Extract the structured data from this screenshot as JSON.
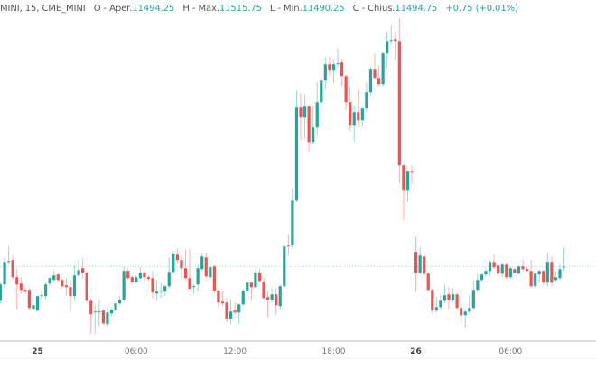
{
  "legend": {
    "symbol": "MINI, 15, CME_MINI",
    "open_label": "O - Aper.",
    "open": "11494.25",
    "high_label": "H - Max.",
    "high": "11515.75",
    "low_label": "L - Min.",
    "low": "11490.25",
    "close_label": "C - Chius.",
    "close": "11494.75",
    "change": "+0.75 (+0.01%)"
  },
  "colors": {
    "up": "#26a69a",
    "down": "#ef5350",
    "text": "#555555"
  },
  "chart_data": {
    "type": "candlestick",
    "title": "MINI, 15, CME_MINI",
    "interval": "15",
    "x_tick_labels": [
      "25",
      "06:00",
      "12:00",
      "18:00",
      "26",
      "06:00"
    ],
    "x_tick_candle_index": [
      9,
      33,
      57,
      81,
      101,
      124
    ],
    "bold_ticks": [
      "25",
      "26"
    ],
    "last_price": 11494.75,
    "ohlc": [
      [
        11457,
        11477,
        11454,
        11475
      ],
      [
        11475,
        11505,
        11470,
        11500
      ],
      [
        11500,
        11517,
        11497,
        11501
      ],
      [
        11502,
        11507,
        11480,
        11483
      ],
      [
        11483,
        11492,
        11447,
        11475
      ],
      [
        11476,
        11483,
        11465,
        11469
      ],
      [
        11469,
        11471,
        11465,
        11467
      ],
      [
        11469,
        11471,
        11447,
        11449
      ],
      [
        11448,
        11454,
        11446,
        11452
      ],
      [
        11446,
        11463,
        11445,
        11462
      ],
      [
        11462,
        11468,
        11458,
        11463
      ],
      [
        11462,
        11478,
        11458,
        11475
      ],
      [
        11476,
        11484,
        11474,
        11482
      ],
      [
        11480,
        11491,
        11477,
        11485
      ],
      [
        11486,
        11488,
        11478,
        11480
      ],
      [
        11480,
        11482,
        11471,
        11473
      ],
      [
        11474,
        11482,
        11463,
        11472
      ],
      [
        11472,
        11480,
        11444,
        11462
      ],
      [
        11462,
        11496,
        11457,
        11485
      ],
      [
        11485,
        11503,
        11483,
        11491
      ],
      [
        11493,
        11504,
        11482,
        11488
      ],
      [
        11488,
        11490,
        11455,
        11457
      ],
      [
        11457,
        11460,
        11420,
        11442
      ],
      [
        11444,
        11452,
        11420,
        11445
      ],
      [
        11444,
        11458,
        11428,
        11445
      ],
      [
        11446,
        11448,
        11430,
        11432
      ],
      [
        11431,
        11450,
        11428,
        11444
      ],
      [
        11443,
        11449,
        11440,
        11447
      ],
      [
        11447,
        11456,
        11445,
        11454
      ],
      [
        11454,
        11462,
        11452,
        11458
      ],
      [
        11458,
        11495,
        11456,
        11490
      ],
      [
        11490,
        11492,
        11480,
        11482
      ],
      [
        11483,
        11485,
        11475,
        11478
      ],
      [
        11478,
        11485,
        11476,
        11483
      ],
      [
        11482,
        11494,
        11480,
        11488
      ],
      [
        11488,
        11490,
        11477,
        11483
      ],
      [
        11483,
        11485,
        11479,
        11481
      ],
      [
        11482,
        11490,
        11460,
        11466
      ],
      [
        11465,
        11480,
        11457,
        11467
      ],
      [
        11467,
        11477,
        11460,
        11468
      ],
      [
        11467,
        11475,
        11462,
        11473
      ],
      [
        11473,
        11505,
        11470,
        11489
      ],
      [
        11489,
        11512,
        11487,
        11509
      ],
      [
        11508,
        11515,
        11498,
        11502
      ],
      [
        11502,
        11507,
        11482,
        11493
      ],
      [
        11493,
        11514,
        11480,
        11482
      ],
      [
        11482,
        11514,
        11470,
        11470
      ],
      [
        11473,
        11475,
        11465,
        11473
      ],
      [
        11475,
        11497,
        11467,
        11493
      ],
      [
        11492,
        11510,
        11490,
        11506
      ],
      [
        11505,
        11510,
        11482,
        11484
      ],
      [
        11483,
        11496,
        11481,
        11494
      ],
      [
        11495,
        11497,
        11466,
        11468
      ],
      [
        11468,
        11470,
        11450,
        11455
      ],
      [
        11456,
        11468,
        11452,
        11454
      ],
      [
        11455,
        11460,
        11433,
        11437
      ],
      [
        11437,
        11459,
        11431,
        11445
      ],
      [
        11446,
        11455,
        11442,
        11444
      ],
      [
        11444,
        11453,
        11431,
        11453
      ],
      [
        11453,
        11470,
        11451,
        11468
      ],
      [
        11468,
        11478,
        11466,
        11477
      ],
      [
        11477,
        11478,
        11457,
        11472
      ],
      [
        11472,
        11491,
        11470,
        11488
      ],
      [
        11488,
        11492,
        11477,
        11479
      ],
      [
        11478,
        11482,
        11458,
        11460
      ],
      [
        11461,
        11467,
        11439,
        11458
      ],
      [
        11458,
        11471,
        11455,
        11464
      ],
      [
        11464,
        11471,
        11441,
        11452
      ],
      [
        11451,
        11475,
        11447,
        11473
      ],
      [
        11473,
        11519,
        11471,
        11517
      ],
      [
        11518,
        11531,
        11507,
        11517
      ],
      [
        11518,
        11582,
        11516,
        11568
      ],
      [
        11568,
        11690,
        11566,
        11671
      ],
      [
        11671,
        11687,
        11635,
        11660
      ],
      [
        11660,
        11685,
        11637,
        11672
      ],
      [
        11672,
        11674,
        11623,
        11633
      ],
      [
        11633,
        11673,
        11630,
        11649
      ],
      [
        11649,
        11699,
        11640,
        11677
      ],
      [
        11677,
        11707,
        11675,
        11701
      ],
      [
        11701,
        11727,
        11691,
        11719
      ],
      [
        11719,
        11727,
        11707,
        11712
      ],
      [
        11712,
        11723,
        11698,
        11719
      ],
      [
        11719,
        11737,
        11715,
        11720
      ],
      [
        11721,
        11725,
        11695,
        11706
      ],
      [
        11706,
        11708,
        11668,
        11677
      ],
      [
        11677,
        11695,
        11645,
        11651
      ],
      [
        11651,
        11673,
        11633,
        11666
      ],
      [
        11666,
        11691,
        11649,
        11657
      ],
      [
        11657,
        11672,
        11649,
        11670
      ],
      [
        11670,
        11699,
        11666,
        11688
      ],
      [
        11688,
        11716,
        11684,
        11713
      ],
      [
        11713,
        11731,
        11702,
        11704
      ],
      [
        11704,
        11717,
        11695,
        11697
      ],
      [
        11697,
        11733,
        11694,
        11731
      ],
      [
        11731,
        11755,
        11715,
        11745
      ],
      [
        11745,
        11762,
        11741,
        11746
      ],
      [
        11747,
        11755,
        11724,
        11745
      ],
      [
        11745,
        11770,
        11587,
        11607
      ],
      [
        11607,
        11609,
        11546,
        11579
      ],
      [
        11579,
        11602,
        11567,
        11600
      ],
      [
        11600,
        11607,
        11587,
        11599
      ],
      [
        11511,
        11528,
        11467,
        11488
      ],
      [
        11488,
        11516,
        11486,
        11507
      ],
      [
        11506,
        11511,
        11485,
        11487
      ],
      [
        11487,
        11489,
        11467,
        11469
      ],
      [
        11469,
        11471,
        11443,
        11446
      ],
      [
        11446,
        11461,
        11444,
        11450
      ],
      [
        11450,
        11463,
        11446,
        11457
      ],
      [
        11457,
        11475,
        11455,
        11463
      ],
      [
        11464,
        11472,
        11448,
        11458
      ],
      [
        11458,
        11471,
        11456,
        11464
      ],
      [
        11464,
        11466,
        11447,
        11449
      ],
      [
        11449,
        11453,
        11433,
        11441
      ],
      [
        11441,
        11447,
        11427,
        11445
      ],
      [
        11445,
        11463,
        11443,
        11449
      ],
      [
        11449,
        11479,
        11447,
        11469
      ],
      [
        11469,
        11487,
        11467,
        11480
      ],
      [
        11480,
        11488,
        11478,
        11486
      ],
      [
        11486,
        11493,
        11484,
        11490
      ],
      [
        11490,
        11502,
        11484,
        11500
      ],
      [
        11500,
        11508,
        11492,
        11494
      ],
      [
        11496,
        11497,
        11484,
        11487
      ],
      [
        11487,
        11498,
        11483,
        11497
      ],
      [
        11497,
        11499,
        11481,
        11483
      ],
      [
        11483,
        11495,
        11481,
        11493
      ],
      [
        11492,
        11493,
        11487,
        11488
      ],
      [
        11487,
        11496,
        11486,
        11495
      ],
      [
        11495,
        11503,
        11490,
        11492
      ],
      [
        11492,
        11495,
        11490,
        11490
      ],
      [
        11490,
        11502,
        11471,
        11473
      ],
      [
        11473,
        11489,
        11471,
        11487
      ],
      [
        11486,
        11492,
        11477,
        11490
      ],
      [
        11490,
        11492,
        11475,
        11477
      ],
      [
        11477,
        11510,
        11473,
        11500
      ],
      [
        11500,
        11506,
        11473,
        11477
      ],
      [
        11480,
        11490,
        11477,
        11483
      ],
      [
        11482,
        11498,
        11480,
        11492
      ],
      [
        11494.25,
        11515.75,
        11490.25,
        11494.75
      ]
    ]
  }
}
